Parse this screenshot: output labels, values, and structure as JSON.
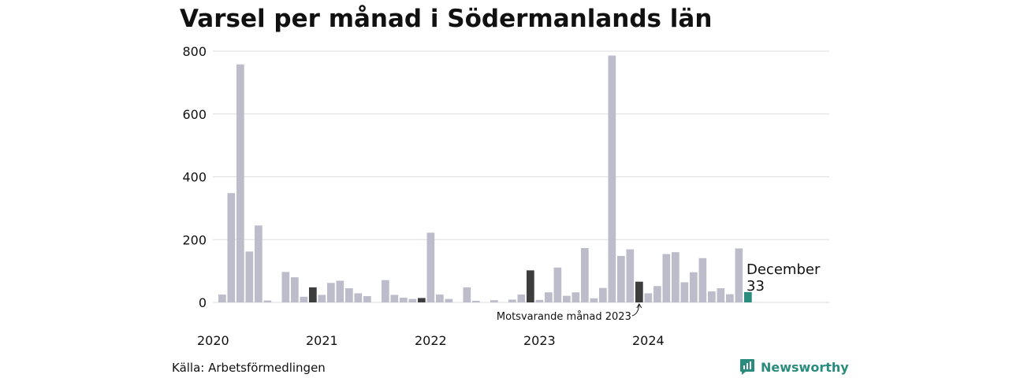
{
  "chart_data": {
    "type": "bar",
    "title": "Varsel per månad i Södermanlands län",
    "xlabel": "",
    "ylabel": "",
    "ylim": [
      0,
      800
    ],
    "yticks": [
      "0",
      "200",
      "400",
      "600",
      "800"
    ],
    "grid": true,
    "year_labels": [
      {
        "label": "2020",
        "index": 0
      },
      {
        "label": "2021",
        "index": 12
      },
      {
        "label": "2022",
        "index": 24
      },
      {
        "label": "2023",
        "index": 36
      },
      {
        "label": "2024",
        "index": 48
      }
    ],
    "values": [
      25,
      348,
      758,
      162,
      245,
      6,
      0,
      97,
      80,
      18,
      48,
      24,
      62,
      69,
      45,
      29,
      20,
      0,
      71,
      24,
      15,
      11,
      14,
      222,
      25,
      11,
      0,
      48,
      5,
      0,
      7,
      0,
      9,
      25,
      102,
      8,
      32,
      111,
      21,
      32,
      173,
      13,
      46,
      786,
      148,
      169,
      66,
      29,
      52,
      154,
      160,
      64,
      96,
      141,
      35,
      45,
      26,
      172,
      33
    ],
    "highlight_same_month": [
      10,
      22,
      34,
      46
    ],
    "current_index": 58,
    "colors": {
      "default": "#bdbccb",
      "same_month": "#3d3d3d",
      "current": "#2a8c7d",
      "grid": "#dedede"
    },
    "last_label": {
      "month": "December",
      "value": "33"
    },
    "annotation": "Motsvarande månad 2023"
  },
  "source": "Källa: Arbetsförmedlingen",
  "brand": {
    "name": "Newsworthy",
    "icon": "newsworthy-logo-icon"
  }
}
